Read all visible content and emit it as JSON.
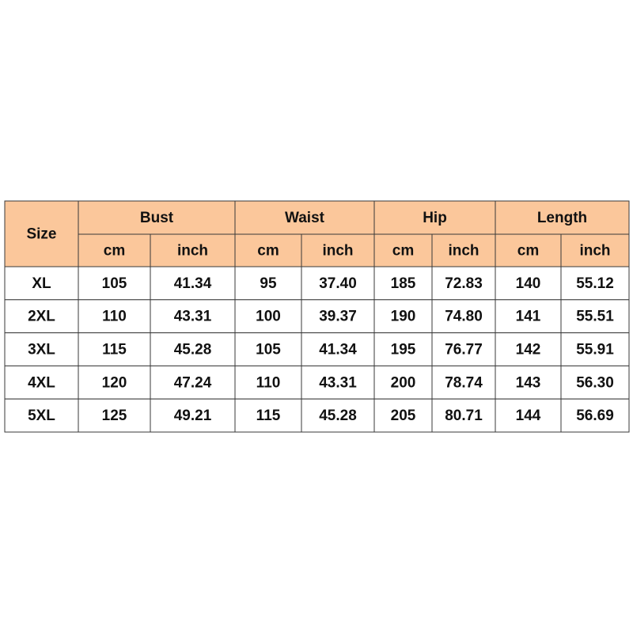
{
  "table": {
    "size_header": "Size",
    "groups": [
      "Bust",
      "Waist",
      "Hip",
      "Length"
    ],
    "units": [
      "cm",
      "inch",
      "cm",
      "inch",
      "cm",
      "inch",
      "cm",
      "inch"
    ],
    "rows": [
      [
        "XL",
        "105",
        "41.34",
        "95",
        "37.40",
        "185",
        "72.83",
        "140",
        "55.12"
      ],
      [
        "2XL",
        "110",
        "43.31",
        "100",
        "39.37",
        "190",
        "74.80",
        "141",
        "55.51"
      ],
      [
        "3XL",
        "115",
        "45.28",
        "105",
        "41.34",
        "195",
        "76.77",
        "142",
        "55.91"
      ],
      [
        "4XL",
        "120",
        "47.24",
        "110",
        "43.31",
        "200",
        "78.74",
        "143",
        "56.30"
      ],
      [
        "5XL",
        "125",
        "49.21",
        "115",
        "45.28",
        "205",
        "80.71",
        "144",
        "56.69"
      ]
    ]
  }
}
